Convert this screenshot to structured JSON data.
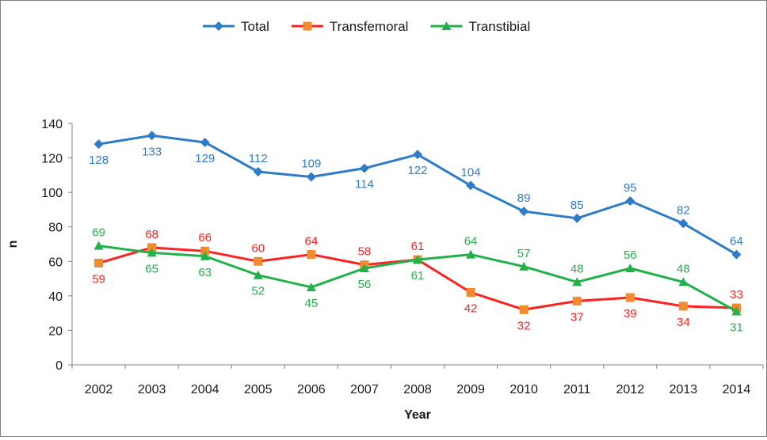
{
  "chart_data": {
    "type": "line",
    "title": "",
    "xlabel": "Year",
    "ylabel": "n",
    "categories": [
      "2002",
      "2003",
      "2004",
      "2005",
      "2006",
      "2007",
      "2008",
      "2009",
      "2010",
      "2011",
      "2012",
      "2013",
      "2014"
    ],
    "ylim": [
      0,
      140
    ],
    "yticks": [
      0,
      20,
      40,
      60,
      80,
      100,
      120,
      140
    ],
    "grid": false,
    "legend_position": "top",
    "series": [
      {
        "name": "Total",
        "color": "#2E7CC7",
        "marker": "diamond",
        "values": [
          128,
          133,
          129,
          112,
          109,
          114,
          122,
          104,
          89,
          85,
          95,
          82,
          64
        ],
        "label_positions": [
          "below",
          "below",
          "below",
          "above",
          "above",
          "below",
          "below",
          "above",
          "above",
          "above",
          "above",
          "above",
          "above"
        ]
      },
      {
        "name": "Transfemoral",
        "color": "#FF2020",
        "marker": "square",
        "values": [
          59,
          68,
          66,
          60,
          64,
          58,
          61,
          42,
          32,
          37,
          39,
          34,
          33
        ],
        "label_positions": [
          "below",
          "above",
          "above",
          "above",
          "above",
          "above",
          "above",
          "below",
          "below",
          "below",
          "below",
          "below",
          "above"
        ]
      },
      {
        "name": "Transtibial",
        "color": "#22B04A",
        "marker": "triangle",
        "values": [
          69,
          65,
          63,
          52,
          45,
          56,
          61,
          64,
          57,
          48,
          56,
          48,
          31
        ],
        "label_positions": [
          "above",
          "below",
          "below",
          "below",
          "below",
          "below",
          "below",
          "above",
          "above",
          "above",
          "above",
          "above",
          "below"
        ]
      }
    ]
  }
}
